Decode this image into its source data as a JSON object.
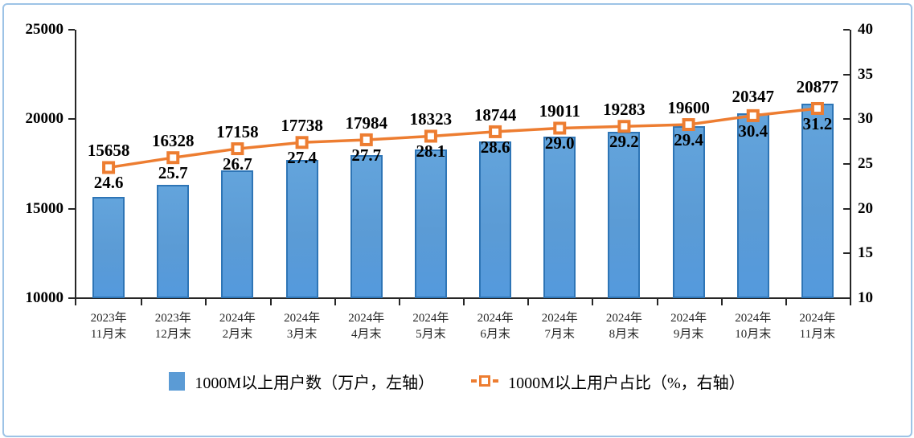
{
  "chart_data": {
    "type": "bar",
    "subtype": "bar-line-combo",
    "categories": [
      "2023年11月末",
      "2023年12月末",
      "2024年2月末",
      "2024年3月末",
      "2024年4月末",
      "2024年5月末",
      "2024年6月末",
      "2024年7月末",
      "2024年8月末",
      "2024年9月末",
      "2024年10月末",
      "2024年11月末"
    ],
    "series": [
      {
        "name": "1000M以上用户数（万户，左轴）",
        "type": "bar",
        "axis": "left",
        "values": [
          15658,
          16328,
          17158,
          17738,
          17984,
          18323,
          18744,
          19011,
          19283,
          19600,
          20347,
          20877
        ],
        "labels": [
          "15658",
          "16328",
          "17158",
          "17738",
          "17984",
          "18323",
          "18744",
          "19011",
          "19283",
          "19600",
          "20347",
          "20877"
        ],
        "color": "#5B9BD5",
        "border_color": "#2E75B6"
      },
      {
        "name": "1000M以上用户占比（%，右轴）",
        "type": "line",
        "axis": "right",
        "values": [
          24.6,
          25.7,
          26.7,
          27.4,
          27.7,
          28.1,
          28.6,
          29.0,
          29.2,
          29.4,
          30.4,
          31.2
        ],
        "labels": [
          "24.6",
          "25.7",
          "26.7",
          "27.4",
          "27.7",
          "28.1",
          "28.6",
          "29.0",
          "29.2",
          "29.4",
          "30.4",
          "31.2"
        ],
        "color": "#ED7D31",
        "marker": "square"
      }
    ],
    "left_axis": {
      "min": 10000,
      "max": 25000,
      "step": 5000,
      "tick_labels": [
        "25000",
        "20000",
        "15000",
        "10000"
      ]
    },
    "right_axis": {
      "min": 10,
      "max": 40,
      "step": 5,
      "tick_labels": [
        "40",
        "35",
        "30",
        "25",
        "20",
        "15",
        "10"
      ]
    },
    "title": "",
    "xlabel": "",
    "ylabel": "",
    "grid": false,
    "legend_position": "bottom"
  },
  "legend": {
    "bar_label": "1000M以上用户数（万户，左轴）",
    "line_label": "1000M以上用户占比（%，右轴）"
  },
  "colors": {
    "bar_fill": "#5B9BD5",
    "bar_border": "#2E75B6",
    "line": "#ED7D31",
    "frame_border": "#9DC3E6",
    "axis": "#262626",
    "text": "#000000"
  }
}
